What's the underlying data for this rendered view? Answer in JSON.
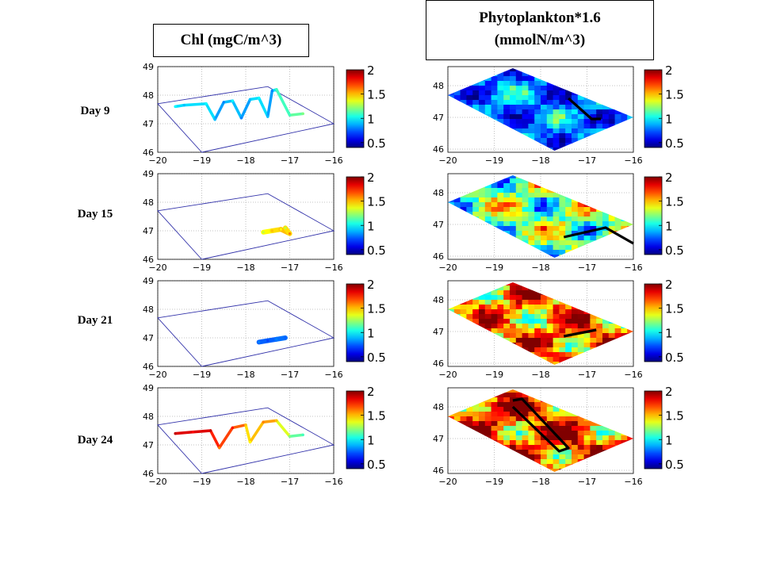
{
  "headers": {
    "left": "Chl (mgC/m^3)",
    "right_line1": "Phytoplankton*1.6",
    "right_line2": "(mmolN/m^3)"
  },
  "chart_data": {
    "type": "heatmap",
    "title": "",
    "columns": [
      "Chl (mgC/m^3)",
      "Phytoplankton*1.6 (mmolN/m^3)"
    ],
    "rows": [
      "Day 9",
      "Day 15",
      "Day 21",
      "Day 24"
    ],
    "x_ticks": [
      -20,
      -19,
      -18,
      -17,
      -16
    ],
    "y_ticks": [
      46,
      47,
      48,
      49
    ],
    "xlim": [
      -20,
      -16
    ],
    "ylim_left": [
      46,
      49
    ],
    "ylim_right": [
      45.9,
      48.6
    ],
    "colorbar": {
      "ticks": [
        "2",
        "1.5",
        "1",
        "0.5"
      ],
      "range": [
        0.4,
        2.0
      ],
      "colormap": "jet"
    },
    "domain_outline": [
      [
        -19.0,
        46.0
      ],
      [
        -16.0,
        47.0
      ],
      [
        -17.5,
        48.3
      ],
      [
        -20.0,
        47.7
      ]
    ],
    "left_panels": [
      {
        "day": "Day 9",
        "track_type": "ship_survey",
        "points": [
          [
            -19.6,
            47.6,
            1.0
          ],
          [
            -19.4,
            47.65,
            0.9
          ],
          [
            -18.9,
            47.7,
            1.0
          ],
          [
            -18.7,
            47.15,
            0.9
          ],
          [
            -18.5,
            47.75,
            0.8
          ],
          [
            -18.3,
            47.8,
            1.0
          ],
          [
            -18.1,
            47.2,
            0.8
          ],
          [
            -17.9,
            47.85,
            0.9
          ],
          [
            -17.7,
            47.9,
            1.0
          ],
          [
            -17.5,
            47.25,
            0.9
          ],
          [
            -17.4,
            48.15,
            0.8
          ],
          [
            -17.3,
            48.2,
            1.1
          ],
          [
            -17.0,
            47.3,
            1.1
          ],
          [
            -16.7,
            47.35,
            1.2
          ]
        ]
      },
      {
        "day": "Day 15",
        "track_type": "patch",
        "points": [
          [
            -17.6,
            46.95,
            1.3
          ],
          [
            -17.4,
            47.0,
            1.5
          ],
          [
            -17.2,
            47.05,
            1.4
          ],
          [
            -17.0,
            46.9,
            1.6
          ],
          [
            -17.1,
            47.1,
            1.3
          ]
        ]
      },
      {
        "day": "Day 21",
        "track_type": "patch",
        "points": [
          [
            -17.7,
            46.85,
            0.8
          ],
          [
            -17.5,
            46.9,
            0.7
          ],
          [
            -17.3,
            46.95,
            0.8
          ],
          [
            -17.1,
            47.0,
            0.75
          ]
        ]
      },
      {
        "day": "Day 24",
        "track_type": "ship_survey",
        "points": [
          [
            -19.6,
            47.4,
            1.9
          ],
          [
            -19.2,
            47.45,
            1.8
          ],
          [
            -18.8,
            47.5,
            1.9
          ],
          [
            -18.6,
            46.9,
            1.6
          ],
          [
            -18.3,
            47.6,
            1.8
          ],
          [
            -18.0,
            47.7,
            1.5
          ],
          [
            -17.9,
            47.1,
            1.4
          ],
          [
            -17.6,
            47.8,
            1.6
          ],
          [
            -17.3,
            47.85,
            1.5
          ],
          [
            -17.0,
            47.3,
            1.2
          ],
          [
            -16.7,
            47.35,
            1.1
          ]
        ]
      }
    ],
    "right_panels": [
      {
        "day": "Day 9",
        "field": "phytoplankton",
        "dominant_level": 0.8,
        "range": [
          0.4,
          1.4
        ],
        "ship_track": [
          [
            -17.4,
            47.6
          ],
          [
            -16.9,
            46.95
          ],
          [
            -16.7,
            46.95
          ]
        ]
      },
      {
        "day": "Day 15",
        "field": "phytoplankton",
        "dominant_level": 1.2,
        "range": [
          0.5,
          1.9
        ],
        "ship_track": [
          [
            -17.5,
            46.6
          ],
          [
            -16.6,
            46.9
          ],
          [
            -16.0,
            46.4
          ]
        ]
      },
      {
        "day": "Day 21",
        "field": "phytoplankton",
        "dominant_level": 1.6,
        "range": [
          0.4,
          2.0
        ],
        "ship_track": [
          [
            -17.5,
            46.85
          ],
          [
            -16.8,
            47.05
          ]
        ]
      },
      {
        "day": "Day 24",
        "field": "phytoplankton",
        "dominant_level": 1.7,
        "range": [
          0.4,
          2.0
        ],
        "ship_track": [
          [
            -18.6,
            48.2
          ],
          [
            -18.4,
            48.25
          ],
          [
            -17.4,
            46.7
          ],
          [
            -17.6,
            46.6
          ],
          [
            -18.6,
            48.0
          ]
        ]
      }
    ]
  }
}
